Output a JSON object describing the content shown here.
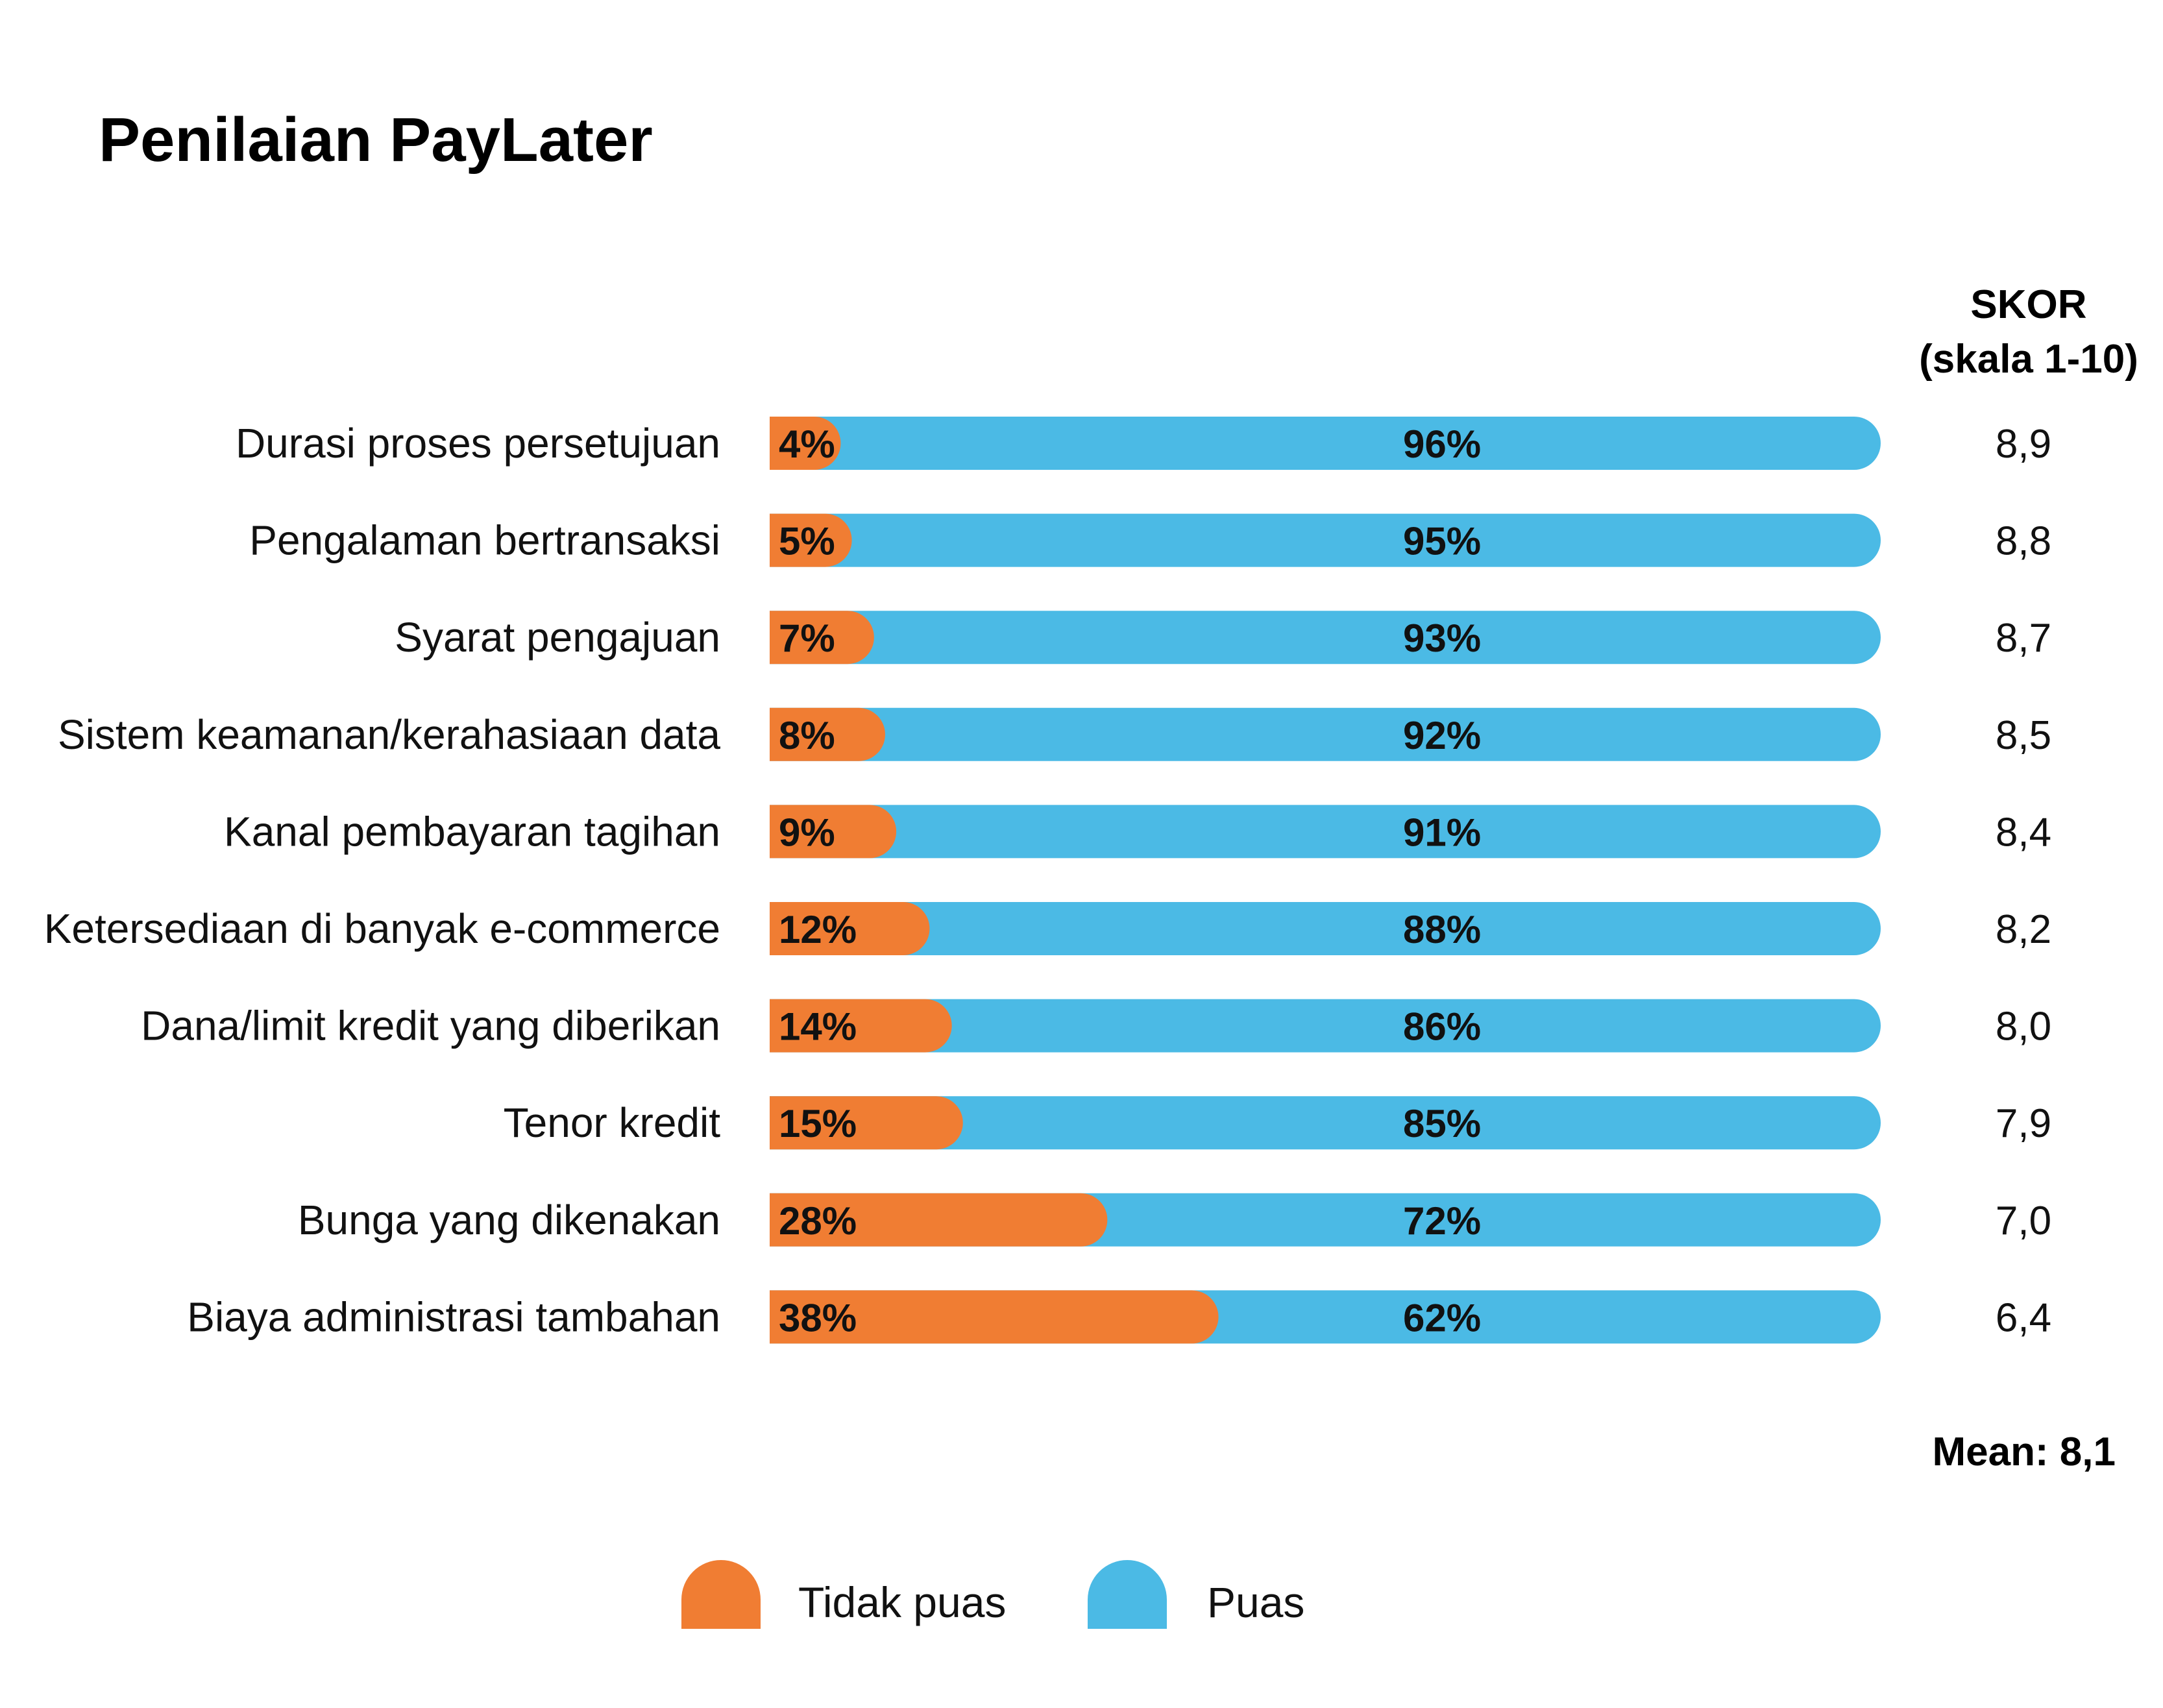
{
  "chart_data": {
    "type": "bar",
    "stacked": true,
    "orientation": "horizontal",
    "title": "Penilaian PayLater",
    "score_header": [
      "SKOR",
      "(skala 1-10)"
    ],
    "categories": [
      "Durasi proses persetujuan",
      "Pengalaman bertransaksi",
      "Syarat pengajuan",
      "Sistem keamanan/kerahasiaan data",
      "Kanal pembayaran tagihan",
      "Ketersediaan di banyak e-commerce",
      "Dana/limit kredit yang diberikan",
      "Tenor kredit",
      "Bunga yang dikenakan",
      "Biaya administrasi tambahan"
    ],
    "series": [
      {
        "name": "Tidak puas",
        "values": [
          4,
          5,
          7,
          8,
          9,
          12,
          14,
          15,
          28,
          38
        ],
        "color": "#F07D33"
      },
      {
        "name": "Puas",
        "values": [
          96,
          95,
          93,
          92,
          91,
          88,
          86,
          85,
          72,
          62
        ],
        "color": "#4BBAE5"
      }
    ],
    "value_labels": {
      "tidak_puas": [
        "4%",
        "5%",
        "7%",
        "8%",
        "9%",
        "12%",
        "14%",
        "15%",
        "28%",
        "38%"
      ],
      "puas": [
        "96%",
        "95%",
        "93%",
        "92%",
        "91%",
        "88%",
        "86%",
        "85%",
        "72%",
        "62%"
      ]
    },
    "scores": [
      "8,9",
      "8,8",
      "8,7",
      "8,5",
      "8,4",
      "8,2",
      "8,0",
      "7,9",
      "7,0",
      "6,4"
    ],
    "mean_label": "Mean: 8,1",
    "xlim": [
      0,
      100
    ],
    "grid": false,
    "legend_position": "bottom"
  }
}
